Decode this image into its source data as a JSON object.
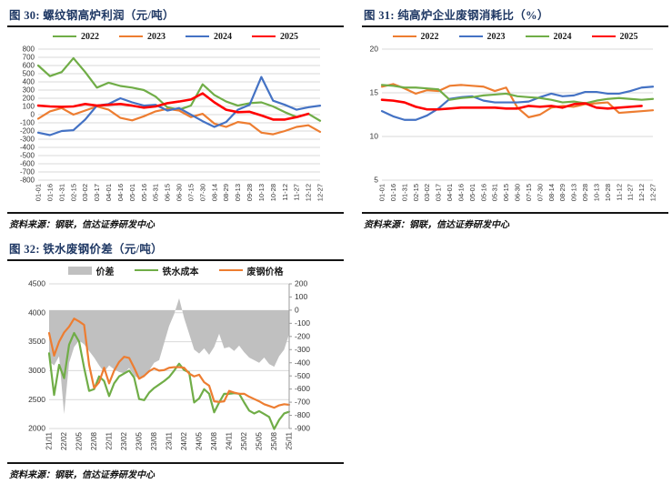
{
  "figures": [
    {
      "title": "图 30: 螺纹钢高炉利润（元/吨）",
      "source": "资料来源：钢联，信达证券研发中心"
    },
    {
      "title": "图 31: 纯高炉企业废钢消耗比（%）",
      "source": "资料来源：钢联，信达证券研发中心"
    },
    {
      "title": "图 32: 铁水废钢价差（元/吨）",
      "source": "资料来源：钢联，信达证券研发中心"
    }
  ],
  "colors": {
    "green": "#70AD47",
    "orange": "#ED7D31",
    "blue": "#4472C4",
    "red": "#FF0000",
    "gray": "#C0C0C0",
    "title_navy": "#1F3864"
  },
  "chart_data": [
    {
      "type": "line",
      "title": "螺纹钢高炉利润（元/吨）",
      "legend_position": "top",
      "grid": true,
      "ylim": [
        -800,
        800
      ],
      "yticks": [
        800,
        700,
        600,
        500,
        400,
        300,
        200,
        100,
        0,
        -100,
        -200,
        -300,
        -400,
        -500,
        -600,
        -700,
        -800
      ],
      "xtick_every": 1,
      "categories": [
        "01-01",
        "01-16",
        "01-31",
        "02-15",
        "03-02",
        "03-17",
        "04-01",
        "04-16",
        "05-01",
        "05-16",
        "05-31",
        "06-15",
        "06-30",
        "07-15",
        "07-30",
        "08-14",
        "08-29",
        "09-13",
        "09-28",
        "10-13",
        "10-28",
        "11-12",
        "11-27",
        "12-12",
        "12-27"
      ],
      "series": [
        {
          "name": "2022",
          "color": "#70AD47",
          "type": "line",
          "axis": "left",
          "values": [
            600,
            470,
            520,
            690,
            520,
            330,
            390,
            350,
            330,
            300,
            220,
            90,
            60,
            110,
            370,
            240,
            160,
            110,
            140,
            150,
            100,
            30,
            -30,
            10,
            -75
          ]
        },
        {
          "name": "2023",
          "color": "#ED7D31",
          "type": "line",
          "axis": "left",
          "values": [
            -50,
            40,
            80,
            0,
            50,
            100,
            60,
            -40,
            -70,
            -20,
            40,
            70,
            50,
            -30,
            10,
            -110,
            -150,
            -90,
            -110,
            -220,
            -240,
            -200,
            -150,
            -130,
            -210
          ]
        },
        {
          "name": "2024",
          "color": "#4472C4",
          "type": "line",
          "axis": "left",
          "values": [
            -220,
            -250,
            -200,
            -190,
            -60,
            110,
            130,
            200,
            150,
            110,
            120,
            50,
            80,
            0,
            -80,
            -150,
            -90,
            60,
            120,
            460,
            170,
            120,
            60,
            90,
            110
          ]
        },
        {
          "name": "2025",
          "color": "#FF0000",
          "type": "line",
          "axis": "left",
          "width": 2.6,
          "values": [
            110,
            100,
            95,
            100,
            130,
            110,
            120,
            130,
            110,
            85,
            100,
            140,
            160,
            185,
            260,
            150,
            60,
            30,
            35,
            -10,
            -60,
            -60,
            -30,
            10,
            null
          ]
        }
      ]
    },
    {
      "type": "line",
      "title": "纯高炉企业废钢消耗比（%）",
      "legend_position": "top",
      "grid": true,
      "ylim": [
        5,
        20
      ],
      "yticks": [
        20,
        15,
        10,
        5
      ],
      "xtick_every": 1,
      "categories": [
        "01-01",
        "01-16",
        "01-31",
        "02-15",
        "03-02",
        "03-17",
        "04-01",
        "04-16",
        "05-01",
        "05-16",
        "05-31",
        "06-15",
        "06-30",
        "07-15",
        "07-30",
        "08-14",
        "08-29",
        "09-13",
        "09-28",
        "10-13",
        "10-28",
        "11-12",
        "11-27",
        "12-12",
        "12-27"
      ],
      "series": [
        {
          "name": "2022",
          "color": "#ED7D31",
          "type": "line",
          "axis": "left",
          "values": [
            15.7,
            16.0,
            15.5,
            14.9,
            15.3,
            15.2,
            15.8,
            15.9,
            15.8,
            15.7,
            15.2,
            15.6,
            13.3,
            12.2,
            12.5,
            13.3,
            13.5,
            13.4,
            13.7,
            13.8,
            13.9,
            12.7,
            12.8,
            12.9,
            13.0
          ]
        },
        {
          "name": "2023",
          "color": "#4472C4",
          "type": "line",
          "axis": "left",
          "values": [
            12.9,
            12.3,
            11.9,
            11.9,
            12.4,
            13.2,
            14.3,
            14.5,
            14.6,
            14.1,
            13.9,
            13.9,
            13.9,
            14.0,
            14.5,
            14.9,
            14.6,
            14.7,
            15.1,
            15.1,
            14.9,
            14.9,
            15.2,
            15.6,
            15.7
          ]
        },
        {
          "name": "2024",
          "color": "#70AD47",
          "type": "line",
          "axis": "left",
          "values": [
            15.9,
            15.8,
            15.6,
            15.6,
            15.5,
            15.4,
            14.2,
            14.4,
            14.5,
            14.7,
            14.8,
            14.9,
            14.6,
            14.5,
            14.4,
            14.2,
            13.9,
            14.0,
            13.8,
            14.1,
            14.3,
            14.4,
            14.3,
            14.2,
            14.3
          ]
        },
        {
          "name": "2025",
          "color": "#FF0000",
          "type": "line",
          "axis": "left",
          "width": 2.6,
          "values": [
            14.2,
            14.1,
            13.9,
            13.4,
            13.1,
            13.1,
            13.2,
            13.3,
            13.3,
            13.3,
            13.3,
            13.2,
            13.2,
            13.5,
            13.4,
            13.5,
            13.3,
            13.7,
            13.8,
            13.3,
            13.2,
            13.3,
            13.4,
            13.5,
            null
          ]
        }
      ]
    },
    {
      "type": "combo",
      "title": "铁水废钢价差（元/吨）",
      "legend_position": "top",
      "grid": true,
      "ylim": [
        2000,
        4500
      ],
      "yticks": [
        4500,
        4000,
        3500,
        3000,
        2500,
        2000
      ],
      "y2lim": [
        -900,
        200
      ],
      "y2ticks": [
        200,
        100,
        0,
        -100,
        -200,
        -300,
        -400,
        -500,
        -600,
        -700,
        -800,
        -900
      ],
      "xtick_every": 3,
      "categories": [
        "21/11",
        "21/12",
        "22/01",
        "22/02",
        "22/03",
        "22/04",
        "22/05",
        "22/06",
        "22/07",
        "22/08",
        "22/09",
        "22/10",
        "22/11",
        "22/12",
        "23/01",
        "23/02",
        "23/03",
        "23/04",
        "23/05",
        "23/06",
        "23/07",
        "23/08",
        "23/09",
        "23/10",
        "23/11",
        "23/12",
        "24/01",
        "24/02",
        "24/03",
        "24/04",
        "24/05",
        "24/06",
        "24/07",
        "24/08",
        "24/09",
        "24/10",
        "24/11",
        "24/12",
        "25/01",
        "25/02",
        "25/03",
        "25/04",
        "25/05",
        "25/06",
        "25/07",
        "25/08",
        "25/09",
        "25/10",
        "25/11"
      ],
      "xtick_labels": [
        "21/11",
        "22/02",
        "22/05",
        "22/08",
        "22/11",
        "23/02",
        "23/05",
        "23/08",
        "23/11",
        "24/02",
        "24/05",
        "24/08",
        "24/11",
        "25/02",
        "25/05",
        "25/08",
        "25/11"
      ],
      "series": [
        {
          "name": "价差",
          "color": "#C0C0C0",
          "type": "area",
          "axis": "right",
          "values": [
            -390,
            -420,
            -350,
            -790,
            -400,
            -280,
            -230,
            -260,
            -310,
            -360,
            -420,
            -470,
            -420,
            -450,
            -470,
            -480,
            -440,
            -500,
            -520,
            -510,
            -460,
            -400,
            -380,
            -250,
            -120,
            -30,
            90,
            -60,
            -180,
            -300,
            -330,
            -290,
            -340,
            -280,
            -180,
            -290,
            -280,
            -310,
            -270,
            -320,
            -360,
            -380,
            -400,
            -360,
            -410,
            -430,
            -350,
            -300,
            -180
          ]
        },
        {
          "name": "铁水成本",
          "color": "#70AD47",
          "type": "line",
          "axis": "left",
          "values": [
            3300,
            2580,
            3100,
            2870,
            3450,
            3650,
            3500,
            3050,
            2650,
            2680,
            2900,
            2820,
            2560,
            2780,
            2900,
            2950,
            3000,
            2880,
            2510,
            2490,
            2620,
            2700,
            2760,
            2820,
            2890,
            3000,
            3120,
            3010,
            2970,
            2450,
            2520,
            2680,
            2600,
            2280,
            2450,
            2600,
            2600,
            2610,
            2600,
            2450,
            2310,
            2260,
            2300,
            2250,
            2200,
            1990,
            2150,
            2260,
            2290
          ]
        },
        {
          "name": "废钢价格",
          "color": "#ED7D31",
          "type": "line",
          "axis": "left",
          "values": [
            3650,
            3260,
            3500,
            3660,
            3760,
            3900,
            3850,
            3790,
            3100,
            2700,
            2800,
            3050,
            2780,
            3000,
            3150,
            3240,
            3220,
            3050,
            2860,
            2910,
            2990,
            3040,
            3000,
            3010,
            3050,
            3060,
            3060,
            3050,
            2950,
            2900,
            2930,
            2800,
            2740,
            2470,
            2460,
            2470,
            2650,
            2620,
            2600,
            2600,
            2550,
            2510,
            2470,
            2420,
            2390,
            2360,
            2400,
            2420,
            2410
          ]
        }
      ]
    }
  ]
}
